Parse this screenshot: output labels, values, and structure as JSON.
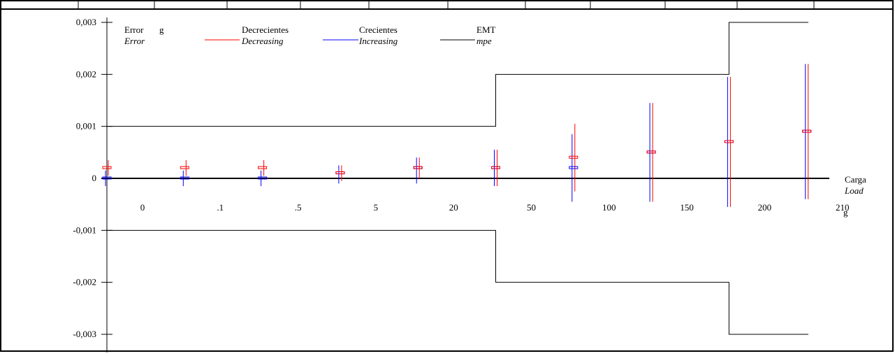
{
  "chart_data": {
    "type": "scatter",
    "title": "",
    "ylabel": "Error",
    "ylabel_en": "Error",
    "ylabel_unit": "g",
    "xlabel": "Carga",
    "xlabel_en": "Load",
    "xlabel_unit": "g",
    "ylim": [
      -0.003,
      0.003
    ],
    "yticks": [
      0.003,
      0.002,
      0.001,
      0,
      -0.001,
      -0.002,
      -0.003
    ],
    "ytick_labels": [
      "0,003",
      "0,002",
      "0,001",
      "0",
      "-0,001",
      "-0,002",
      "-0,003"
    ],
    "categories": [
      "0",
      ".1",
      ".5",
      "5",
      "20",
      "50",
      "100",
      "150",
      "200",
      "210"
    ],
    "legend_position": "top",
    "series": [
      {
        "name": "Decrecientes",
        "name_en": "Decreasing",
        "color": "#ff0000",
        "values": [
          0.0002,
          0.0002,
          0.0002,
          0.0001,
          0.0002,
          0.0002,
          0.0004,
          0.0005,
          0.0007,
          0.0009
        ],
        "upper": [
          0.00035,
          0.00035,
          0.00035,
          0.00025,
          0.0004,
          0.00055,
          0.00105,
          0.00145,
          0.00195,
          0.0022
        ],
        "lower": [
          5e-05,
          5e-05,
          5e-05,
          -5e-05,
          0.0,
          -0.00015,
          -0.00025,
          -0.00045,
          -0.00055,
          -0.0004
        ]
      },
      {
        "name": "Crecientes",
        "name_en": "Increasing",
        "color": "#0000ff",
        "values": [
          0.0,
          0.0,
          0.0,
          0.0001,
          0.0002,
          0.0002,
          0.0002,
          0.0005,
          0.0007,
          0.0009
        ],
        "upper": [
          0.00015,
          0.00015,
          0.00015,
          0.00025,
          0.0004,
          0.00055,
          0.00085,
          0.00145,
          0.00195,
          0.0022
        ],
        "lower": [
          -0.00015,
          -0.00015,
          -0.00015,
          -0.0001,
          -0.0001,
          -0.00015,
          -0.00045,
          -0.00045,
          -0.00055,
          -0.0004
        ]
      },
      {
        "name": "EMT",
        "name_en": "mpe",
        "color": "#000000",
        "upper_limit": [
          0.001,
          0.001,
          0.001,
          0.001,
          0.001,
          0.002,
          0.002,
          0.002,
          0.003,
          0.003
        ],
        "lower_limit": [
          -0.001,
          -0.001,
          -0.001,
          -0.001,
          -0.001,
          -0.002,
          -0.002,
          -0.002,
          -0.003,
          -0.003
        ]
      }
    ]
  }
}
